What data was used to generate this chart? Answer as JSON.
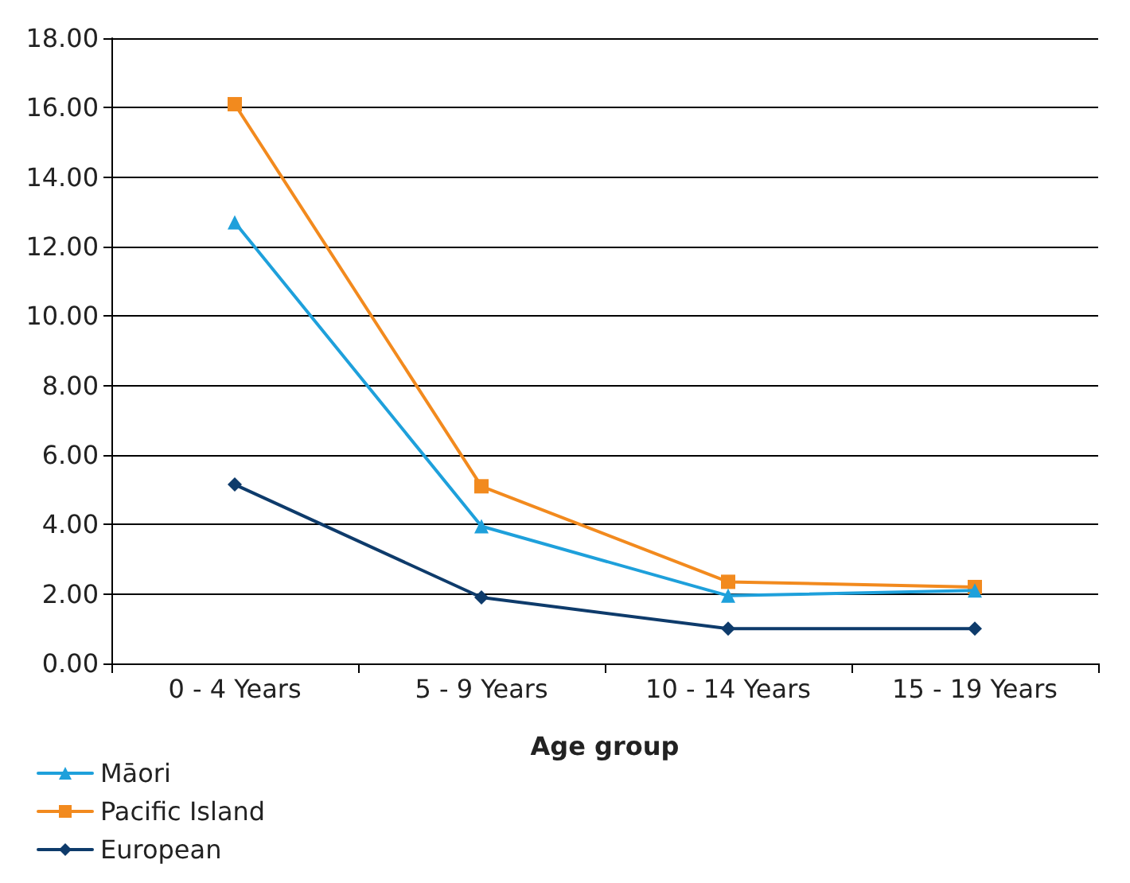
{
  "chart_data": {
    "type": "line",
    "xlabel": "Age group",
    "categories": [
      "0 - 4 Years",
      "5 - 9 Years",
      "10 - 14 Years",
      "15 - 19 Years"
    ],
    "series": [
      {
        "name": "Māori",
        "color": "#1ea0db",
        "marker": "triangle",
        "values": [
          12.7,
          3.95,
          1.95,
          2.1
        ]
      },
      {
        "name": "Pacific Island",
        "color": "#f28a1e",
        "marker": "square",
        "values": [
          16.1,
          5.1,
          2.35,
          2.2
        ]
      },
      {
        "name": "European",
        "color": "#0e3b6b",
        "marker": "diamond",
        "values": [
          5.15,
          1.9,
          1.0,
          1.0
        ]
      }
    ],
    "ylim": [
      0,
      18
    ],
    "yticks": [
      {
        "value": 0,
        "label": "0.00"
      },
      {
        "value": 2,
        "label": "2.00"
      },
      {
        "value": 4,
        "label": "4.00"
      },
      {
        "value": 6,
        "label": "6.00"
      },
      {
        "value": 8,
        "label": "8.00"
      },
      {
        "value": 10,
        "label": "10.00"
      },
      {
        "value": 12,
        "label": "12.00"
      },
      {
        "value": 14,
        "label": "14.00"
      },
      {
        "value": 16,
        "label": "16.00"
      },
      {
        "value": 18,
        "label": "18.00"
      }
    ],
    "grid": "y",
    "legend": "bottom left",
    "line_style": "solid"
  }
}
